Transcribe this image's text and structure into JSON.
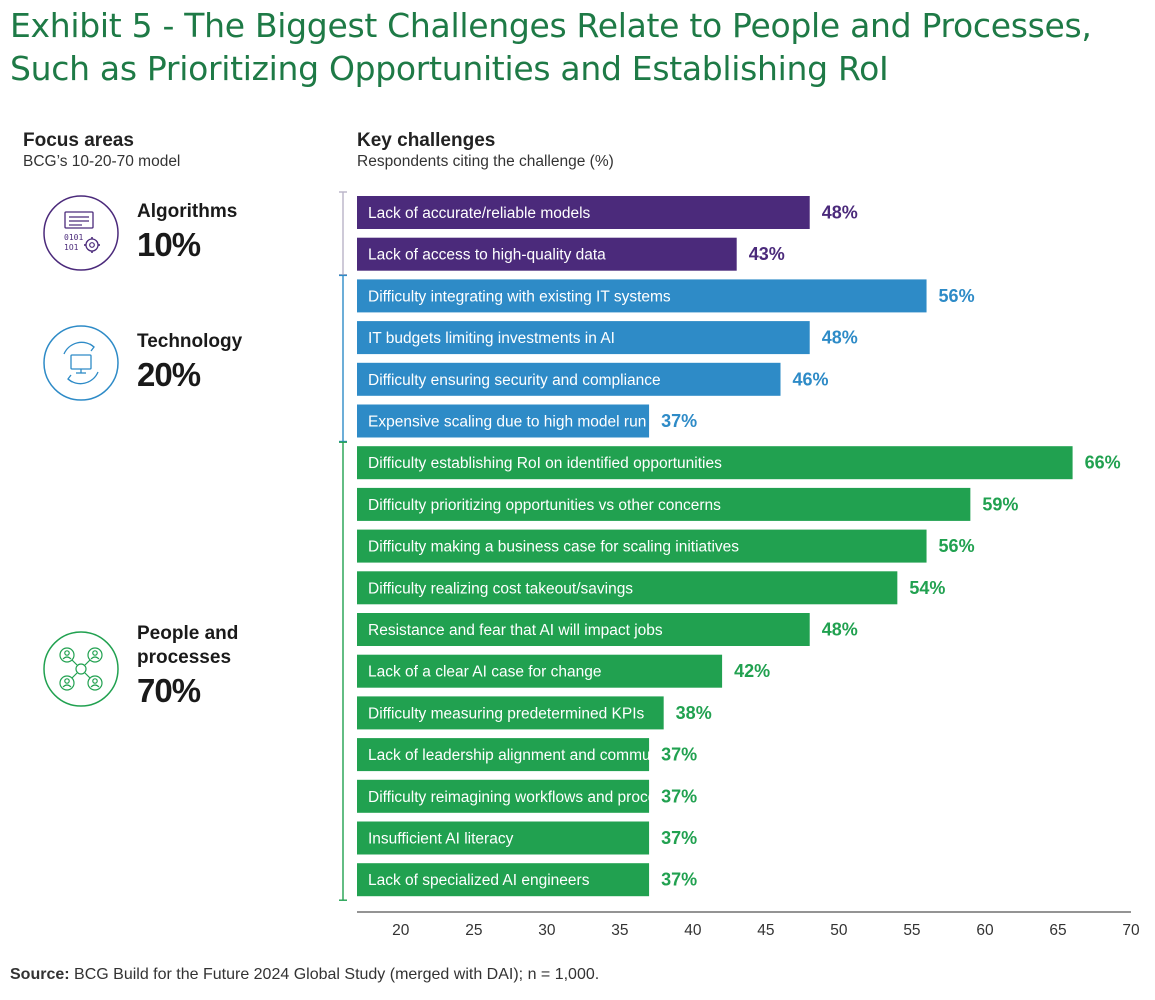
{
  "title": "Exhibit 5 - The Biggest Challenges Relate to People and Processes, Such as Prioritizing Opportunities and Establishing RoI",
  "focus_header": {
    "title": "Focus areas",
    "subtitle": "BCG’s 10-20-70 model"
  },
  "challenges_header": {
    "title": "Key challenges",
    "subtitle": "Respondents citing the challenge (%)"
  },
  "focus_areas": [
    {
      "name": "Algorithms",
      "pct": "10%",
      "color": "#4b2a7b",
      "icon": "binary-gear-icon"
    },
    {
      "name": "Technology",
      "pct": "20%",
      "color": "#2e8bc7",
      "icon": "monitor-cycle-icon"
    },
    {
      "name": "People and\nprocesses",
      "pct": "70%",
      "color": "#21a150",
      "icon": "people-network-icon"
    }
  ],
  "colors": {
    "algorithms": "#4b2a7b",
    "technology": "#2e8bc7",
    "people": "#21a150"
  },
  "chart_data": {
    "type": "bar",
    "orientation": "horizontal",
    "xlim": [
      17,
      70
    ],
    "x_ticks": [
      20,
      25,
      30,
      35,
      40,
      45,
      50,
      55,
      60,
      65,
      70
    ],
    "categories": [
      "Lack of accurate/reliable models",
      "Lack of access to high-quality data",
      "Difficulty integrating with existing IT systems",
      "IT budgets limiting investments in AI",
      "Difficulty ensuring security and compliance",
      "Expensive scaling due to high model run costs",
      "Difficulty establishing RoI on identified opportunities",
      "Difficulty prioritizing opportunities vs other concerns",
      "Difficulty making a business case for scaling initiatives",
      "Difficulty realizing cost takeout/savings",
      "Resistance and fear that AI will impact jobs",
      "Lack of a clear AI case for change",
      "Difficulty measuring predetermined KPIs",
      "Lack of leadership alignment and communications",
      "Difficulty reimagining workflows and processes",
      "Insufficient AI literacy",
      "Lack of specialized AI engineers"
    ],
    "values": [
      48,
      43,
      56,
      48,
      46,
      37,
      66,
      59,
      56,
      54,
      48,
      42,
      38,
      37,
      37,
      37,
      37
    ],
    "value_labels": [
      "48%",
      "43%",
      "56%",
      "48%",
      "46%",
      "37%",
      "66%",
      "59%",
      "56%",
      "54%",
      "48%",
      "42%",
      "38%",
      "37%",
      "37%",
      "37%",
      "37%"
    ],
    "groups": [
      "algorithms",
      "algorithms",
      "technology",
      "technology",
      "technology",
      "technology",
      "people",
      "people",
      "people",
      "people",
      "people",
      "people",
      "people",
      "people",
      "people",
      "people",
      "people"
    ]
  },
  "source": {
    "label": "Source:",
    "text": " BCG Build for the Future 2024 Global Study (merged with DAI); n = 1,000."
  }
}
